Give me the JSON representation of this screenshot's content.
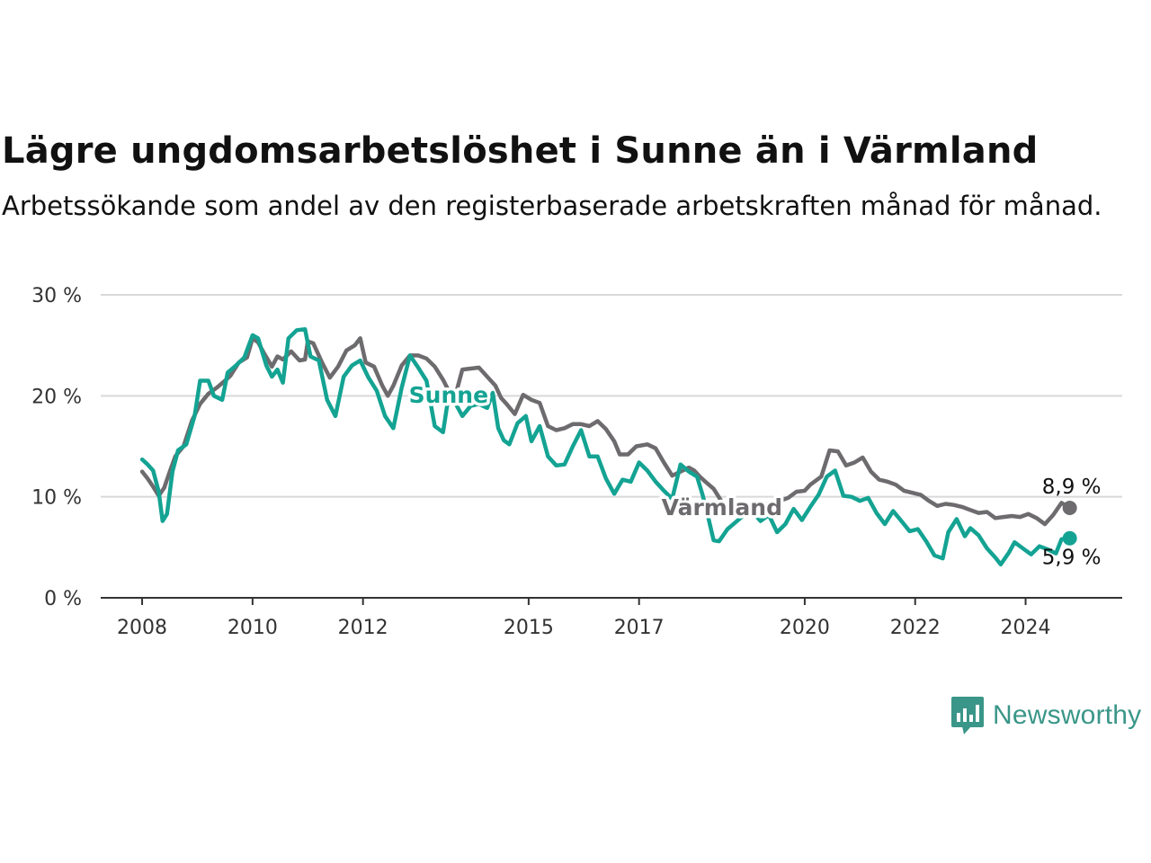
{
  "chart_data": {
    "type": "line",
    "title": "Lägre ungdomsarbetslöshet i Sunne än i Värmland",
    "subtitle": "Arbetssökande som andel av den registerbaserade arbetskraften månad för månad.",
    "y_ticks": [
      "30 %",
      "20 %",
      "10 %",
      "0 %"
    ],
    "y_tick_values": [
      30,
      20,
      10,
      0
    ],
    "x_ticks": [
      "2008",
      "2010",
      "2012",
      "2015",
      "2017",
      "2020",
      "2022",
      "2024"
    ],
    "x_tick_values": [
      2008,
      2010,
      2012,
      2015,
      2017,
      2020,
      2022,
      2024
    ],
    "ylim": [
      0,
      30
    ],
    "xlim": [
      2007.25,
      2025.75
    ],
    "grid": true,
    "series": [
      {
        "name": "Värmland",
        "color": "#6d6b6e",
        "end_label": "8,9 %",
        "points": [
          [
            2008.0,
            12.5
          ],
          [
            2008.1,
            11.8
          ],
          [
            2008.2,
            11.0
          ],
          [
            2008.3,
            10.1
          ],
          [
            2008.4,
            10.9
          ],
          [
            2008.5,
            12.5
          ],
          [
            2008.6,
            14.0
          ],
          [
            2008.75,
            15.0
          ],
          [
            2008.9,
            17.5
          ],
          [
            2009.05,
            19.2
          ],
          [
            2009.2,
            20.2
          ],
          [
            2009.35,
            20.8
          ],
          [
            2009.5,
            21.5
          ],
          [
            2009.6,
            22.0
          ],
          [
            2009.75,
            23.3
          ],
          [
            2009.9,
            23.8
          ],
          [
            2010.0,
            25.7
          ],
          [
            2010.1,
            25.3
          ],
          [
            2010.2,
            24.3
          ],
          [
            2010.35,
            22.9
          ],
          [
            2010.45,
            23.9
          ],
          [
            2010.55,
            23.6
          ],
          [
            2010.7,
            24.4
          ],
          [
            2010.85,
            23.5
          ],
          [
            2010.95,
            23.6
          ],
          [
            2011.0,
            25.4
          ],
          [
            2011.1,
            25.2
          ],
          [
            2011.25,
            23.4
          ],
          [
            2011.4,
            21.8
          ],
          [
            2011.55,
            22.9
          ],
          [
            2011.7,
            24.5
          ],
          [
            2011.85,
            25.0
          ],
          [
            2011.95,
            25.7
          ],
          [
            2012.05,
            23.3
          ],
          [
            2012.2,
            22.9
          ],
          [
            2012.35,
            21.0
          ],
          [
            2012.45,
            20.0
          ],
          [
            2012.55,
            21.0
          ],
          [
            2012.7,
            23.0
          ],
          [
            2012.85,
            24.0
          ],
          [
            2013.0,
            24.0
          ],
          [
            2013.15,
            23.7
          ],
          [
            2013.3,
            22.9
          ],
          [
            2013.45,
            21.6
          ],
          [
            2013.55,
            20.5
          ],
          [
            2013.7,
            20.6
          ],
          [
            2013.8,
            22.6
          ],
          [
            2013.95,
            22.7
          ],
          [
            2014.1,
            22.8
          ],
          [
            2014.25,
            21.9
          ],
          [
            2014.4,
            21.0
          ],
          [
            2014.5,
            19.8
          ],
          [
            2014.6,
            19.2
          ],
          [
            2014.75,
            18.2
          ],
          [
            2014.9,
            20.1
          ],
          [
            2015.05,
            19.6
          ],
          [
            2015.2,
            19.3
          ],
          [
            2015.35,
            17.0
          ],
          [
            2015.5,
            16.6
          ],
          [
            2015.65,
            16.8
          ],
          [
            2015.8,
            17.2
          ],
          [
            2015.95,
            17.2
          ],
          [
            2016.1,
            17.0
          ],
          [
            2016.25,
            17.5
          ],
          [
            2016.4,
            16.7
          ],
          [
            2016.55,
            15.5
          ],
          [
            2016.65,
            14.2
          ],
          [
            2016.8,
            14.2
          ],
          [
            2016.95,
            15.0
          ],
          [
            2017.15,
            15.2
          ],
          [
            2017.3,
            14.8
          ],
          [
            2017.45,
            13.4
          ],
          [
            2017.6,
            12.1
          ],
          [
            2017.75,
            12.5
          ],
          [
            2017.9,
            12.9
          ],
          [
            2018.0,
            12.6
          ],
          [
            2018.1,
            12.0
          ],
          [
            2018.2,
            11.5
          ],
          [
            2018.35,
            10.8
          ],
          [
            2018.5,
            9.5
          ],
          [
            2018.65,
            9.0
          ],
          [
            2018.85,
            8.6
          ],
          [
            2019.0,
            8.8
          ],
          [
            2019.2,
            9.2
          ],
          [
            2019.35,
            9.3
          ],
          [
            2019.55,
            9.6
          ],
          [
            2019.7,
            9.9
          ],
          [
            2019.85,
            10.5
          ],
          [
            2020.0,
            10.6
          ],
          [
            2020.1,
            11.2
          ],
          [
            2020.3,
            12.0
          ],
          [
            2020.45,
            14.6
          ],
          [
            2020.6,
            14.5
          ],
          [
            2020.75,
            13.1
          ],
          [
            2020.9,
            13.4
          ],
          [
            2021.05,
            13.9
          ],
          [
            2021.2,
            12.5
          ],
          [
            2021.35,
            11.7
          ],
          [
            2021.5,
            11.5
          ],
          [
            2021.65,
            11.2
          ],
          [
            2021.8,
            10.6
          ],
          [
            2021.95,
            10.4
          ],
          [
            2022.1,
            10.2
          ],
          [
            2022.25,
            9.6
          ],
          [
            2022.4,
            9.1
          ],
          [
            2022.55,
            9.3
          ],
          [
            2022.7,
            9.2
          ],
          [
            2022.85,
            9.0
          ],
          [
            2023.0,
            8.7
          ],
          [
            2023.15,
            8.4
          ],
          [
            2023.3,
            8.5
          ],
          [
            2023.45,
            7.9
          ],
          [
            2023.6,
            8.0
          ],
          [
            2023.75,
            8.1
          ],
          [
            2023.9,
            8.0
          ],
          [
            2024.05,
            8.3
          ],
          [
            2024.2,
            7.9
          ],
          [
            2024.35,
            7.3
          ],
          [
            2024.5,
            8.2
          ],
          [
            2024.65,
            9.4
          ],
          [
            2024.8,
            8.9
          ]
        ]
      },
      {
        "name": "Sunne",
        "color": "#14a393",
        "end_label": "5,9 %",
        "points": [
          [
            2008.0,
            13.7
          ],
          [
            2008.1,
            13.2
          ],
          [
            2008.2,
            12.6
          ],
          [
            2008.3,
            10.5
          ],
          [
            2008.37,
            7.6
          ],
          [
            2008.45,
            8.3
          ],
          [
            2008.55,
            12.5
          ],
          [
            2008.65,
            14.6
          ],
          [
            2008.8,
            15.2
          ],
          [
            2008.95,
            18.0
          ],
          [
            2009.05,
            21.5
          ],
          [
            2009.2,
            21.5
          ],
          [
            2009.3,
            20.0
          ],
          [
            2009.45,
            19.6
          ],
          [
            2009.55,
            22.3
          ],
          [
            2009.7,
            23.0
          ],
          [
            2009.85,
            23.8
          ],
          [
            2010.0,
            26.0
          ],
          [
            2010.1,
            25.7
          ],
          [
            2010.25,
            23.0
          ],
          [
            2010.35,
            21.9
          ],
          [
            2010.45,
            22.6
          ],
          [
            2010.55,
            21.3
          ],
          [
            2010.65,
            25.7
          ],
          [
            2010.8,
            26.5
          ],
          [
            2010.95,
            26.6
          ],
          [
            2011.05,
            23.9
          ],
          [
            2011.2,
            23.5
          ],
          [
            2011.35,
            19.6
          ],
          [
            2011.5,
            18.0
          ],
          [
            2011.65,
            21.9
          ],
          [
            2011.8,
            23.0
          ],
          [
            2011.95,
            23.5
          ],
          [
            2012.1,
            21.8
          ],
          [
            2012.25,
            20.5
          ],
          [
            2012.4,
            18.0
          ],
          [
            2012.55,
            16.8
          ],
          [
            2012.7,
            20.8
          ],
          [
            2012.85,
            24.0
          ],
          [
            2013.0,
            22.8
          ],
          [
            2013.15,
            21.5
          ],
          [
            2013.3,
            17.0
          ],
          [
            2013.45,
            16.4
          ],
          [
            2013.55,
            20.0
          ],
          [
            2013.65,
            19.5
          ],
          [
            2013.8,
            18.0
          ],
          [
            2013.95,
            19.0
          ],
          [
            2014.1,
            19.2
          ],
          [
            2014.25,
            18.8
          ],
          [
            2014.35,
            20.3
          ],
          [
            2014.45,
            16.8
          ],
          [
            2014.55,
            15.6
          ],
          [
            2014.65,
            15.2
          ],
          [
            2014.8,
            17.3
          ],
          [
            2014.95,
            18.0
          ],
          [
            2015.05,
            15.5
          ],
          [
            2015.2,
            17.0
          ],
          [
            2015.35,
            14.0
          ],
          [
            2015.5,
            13.1
          ],
          [
            2015.65,
            13.2
          ],
          [
            2015.8,
            15.0
          ],
          [
            2015.95,
            16.6
          ],
          [
            2016.1,
            14.0
          ],
          [
            2016.25,
            14.0
          ],
          [
            2016.4,
            11.8
          ],
          [
            2016.55,
            10.3
          ],
          [
            2016.7,
            11.7
          ],
          [
            2016.85,
            11.5
          ],
          [
            2017.0,
            13.4
          ],
          [
            2017.15,
            12.6
          ],
          [
            2017.3,
            11.5
          ],
          [
            2017.45,
            10.6
          ],
          [
            2017.6,
            9.8
          ],
          [
            2017.75,
            13.2
          ],
          [
            2017.9,
            12.5
          ],
          [
            2018.05,
            12.0
          ],
          [
            2018.15,
            10.2
          ],
          [
            2018.25,
            8.0
          ],
          [
            2018.35,
            5.7
          ],
          [
            2018.45,
            5.6
          ],
          [
            2018.6,
            6.8
          ],
          [
            2018.75,
            7.5
          ],
          [
            2018.9,
            8.2
          ],
          [
            2019.05,
            8.5
          ],
          [
            2019.2,
            7.6
          ],
          [
            2019.35,
            8.2
          ],
          [
            2019.5,
            6.5
          ],
          [
            2019.65,
            7.3
          ],
          [
            2019.8,
            8.8
          ],
          [
            2019.95,
            7.7
          ],
          [
            2020.1,
            9.0
          ],
          [
            2020.25,
            10.2
          ],
          [
            2020.4,
            12.0
          ],
          [
            2020.55,
            12.6
          ],
          [
            2020.7,
            10.1
          ],
          [
            2020.85,
            10.0
          ],
          [
            2021.0,
            9.6
          ],
          [
            2021.15,
            9.9
          ],
          [
            2021.3,
            8.4
          ],
          [
            2021.45,
            7.3
          ],
          [
            2021.6,
            8.6
          ],
          [
            2021.75,
            7.6
          ],
          [
            2021.9,
            6.6
          ],
          [
            2022.05,
            6.8
          ],
          [
            2022.2,
            5.6
          ],
          [
            2022.35,
            4.2
          ],
          [
            2022.5,
            3.9
          ],
          [
            2022.6,
            6.5
          ],
          [
            2022.75,
            7.8
          ],
          [
            2022.9,
            6.1
          ],
          [
            2023.0,
            6.9
          ],
          [
            2023.15,
            6.2
          ],
          [
            2023.3,
            4.9
          ],
          [
            2023.45,
            4.0
          ],
          [
            2023.55,
            3.3
          ],
          [
            2023.7,
            4.5
          ],
          [
            2023.8,
            5.5
          ],
          [
            2023.95,
            4.9
          ],
          [
            2024.1,
            4.3
          ],
          [
            2024.25,
            5.1
          ],
          [
            2024.4,
            4.8
          ],
          [
            2024.55,
            4.4
          ],
          [
            2024.65,
            5.8
          ],
          [
            2024.8,
            5.9
          ]
        ]
      }
    ]
  },
  "branding": {
    "logo_text": "Newsworthy",
    "logo_color": "#3a9688"
  }
}
